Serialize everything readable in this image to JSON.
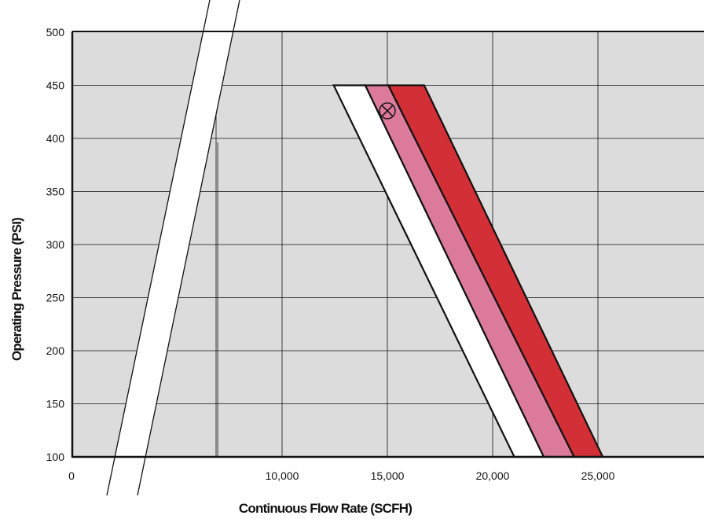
{
  "chart_data": {
    "type": "area",
    "xlabel": "Continuous Flow Rate (SCFH)",
    "ylabel": "Operating Pressure (PSI)",
    "xlim": [
      0,
      27500
    ],
    "ylim": [
      100,
      500
    ],
    "x_axis_break": true,
    "grid": true,
    "x_ticks": [
      {
        "value": 0,
        "label": "0"
      },
      {
        "value": 10000,
        "label": "10,000"
      },
      {
        "value": 15000,
        "label": "15,000"
      },
      {
        "value": 20000,
        "label": "20,000"
      },
      {
        "value": 25000,
        "label": "25,000"
      }
    ],
    "y_ticks": [
      {
        "value": 100,
        "label": "100"
      },
      {
        "value": 150,
        "label": "150"
      },
      {
        "value": 200,
        "label": "200"
      },
      {
        "value": 250,
        "label": "250"
      },
      {
        "value": 300,
        "label": "300"
      },
      {
        "value": 350,
        "label": "350"
      },
      {
        "value": 400,
        "label": "400"
      },
      {
        "value": 450,
        "label": "450"
      },
      {
        "value": 500,
        "label": "500"
      }
    ],
    "bands": [
      {
        "color": "#ffffff",
        "points": [
          [
            12450,
            450
          ],
          [
            13950,
            450
          ],
          [
            22430,
            100
          ],
          [
            21030,
            100
          ]
        ]
      },
      {
        "color": "#dc7a9c",
        "points": [
          [
            13950,
            450
          ],
          [
            15050,
            450
          ],
          [
            23870,
            100
          ],
          [
            22430,
            100
          ]
        ]
      },
      {
        "color": "#d22f36",
        "points": [
          [
            15050,
            450
          ],
          [
            16750,
            450
          ],
          [
            25230,
            100
          ],
          [
            23870,
            100
          ]
        ]
      }
    ],
    "marker": {
      "x": 15000,
      "y": 426,
      "symbol": "circle-x"
    },
    "colors": {
      "plot_background": "#dcdcdc",
      "grid": "#111111"
    }
  }
}
